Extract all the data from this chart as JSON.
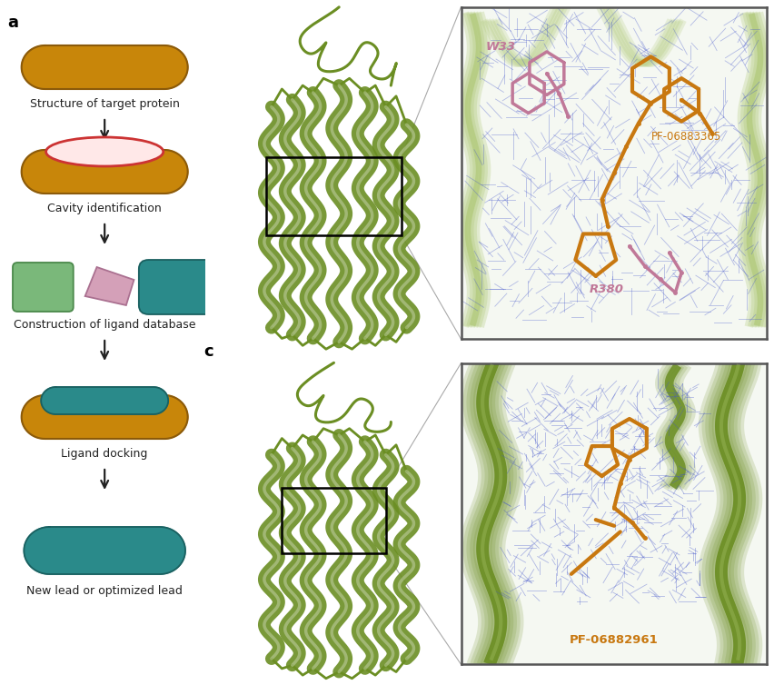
{
  "fig_width": 8.53,
  "fig_height": 7.54,
  "bg_color": "#ffffff",
  "protein_color": "#c8860a",
  "protein_edge": "#8B5A0a",
  "cavity_color": "#ffe8e8",
  "cavity_edge": "#cc3333",
  "ligand_green": "#7ab87a",
  "ligand_green_edge": "#4a884a",
  "ligand_pink": "#d4a0b8",
  "ligand_pink_edge": "#aa7090",
  "ligand_teal": "#2a8a8a",
  "ligand_teal_edge": "#1a6060",
  "arrow_color": "#222222",
  "label_color": "#222222",
  "step_labels": [
    "Structure of target protein",
    "Cavity identification",
    "Construction of ligand database",
    "Ligand docking",
    "New lead or optimized lead"
  ],
  "pf1_label": "PF-06883365",
  "pf2_label": "PF-06882961",
  "w33_label": "W33",
  "r380_label": "R380",
  "orange_ligand": "#c87810",
  "pink_residue": "#c07898",
  "blue_mesh": "#4455cc",
  "helix_green": "#6b8e23",
  "helix_edge": "#4a6a10",
  "inset_bg": "#f5f8f2",
  "inset_helix_light": "#a8c46a"
}
